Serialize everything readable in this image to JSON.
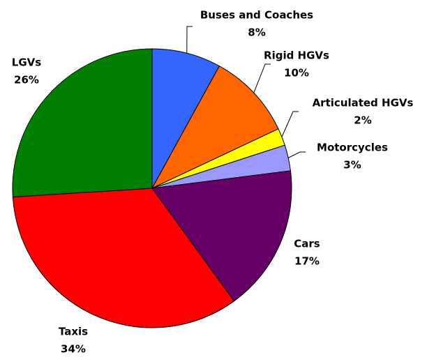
{
  "chart_data": {
    "type": "pie",
    "categories": [
      "Buses and Coaches",
      "Rigid HGVs",
      "Articulated HGVs",
      "Motorcycles",
      "Cars",
      "Taxis",
      "LGVs"
    ],
    "values": [
      8,
      10,
      2,
      3,
      17,
      34,
      26
    ],
    "value_labels": [
      "8%",
      "10%",
      "2%",
      "3%",
      "17%",
      "34%",
      "26%"
    ],
    "colors": [
      "#3366ff",
      "#ff6600",
      "#ffff00",
      "#9999ff",
      "#660066",
      "#ff0000",
      "#008000"
    ]
  }
}
